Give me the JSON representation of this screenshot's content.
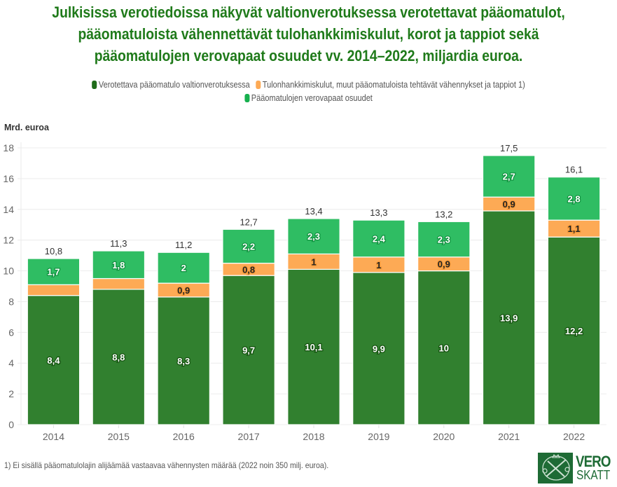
{
  "chart_data": {
    "type": "bar",
    "stacked": true,
    "title_lines": [
      "Julkisissa verotiedoissa näkyvät valtionverotuksessa verotettavat pääomatulot,",
      "pääomatuloista vähennettävät tulohankkimiskulut, korot ja tappiot sekä",
      "pääomatulojen verovapaat osuudet vv. 2014–2022, miljardia euroa."
    ],
    "ylabel": "Mrd. euroa",
    "xlabel": "",
    "ylim": [
      0,
      18
    ],
    "yticks": [
      "0",
      "2",
      "4",
      "6",
      "8",
      "10",
      "12",
      "14",
      "16",
      "18"
    ],
    "grid": true,
    "legend_position": "top",
    "categories": [
      "2014",
      "2015",
      "2016",
      "2017",
      "2018",
      "2019",
      "2020",
      "2021",
      "2022"
    ],
    "series": [
      {
        "name": "Verotettava pääomatulo valtionverotuksessa",
        "color": "#31802f",
        "values": [
          8.4,
          8.8,
          8.3,
          9.7,
          10.1,
          9.9,
          10,
          13.9,
          12.2
        ],
        "labels": [
          "8,4",
          "8,8",
          "8,3",
          "9,7",
          "10,1",
          "9,9",
          "10",
          "13,9",
          "12,2"
        ]
      },
      {
        "name": "Tulonhankkimiskulut, muut pääomatuloista tehtävät vähennykset ja tappiot 1)",
        "color": "#fdaa55",
        "values": [
          0.7,
          0.7,
          0.9,
          0.8,
          1,
          1,
          0.9,
          0.9,
          1.1
        ],
        "labels": [
          "",
          "",
          "0,9",
          "0,8",
          "1",
          "1",
          "0,9",
          "0,9",
          "1,1"
        ]
      },
      {
        "name": "Pääomatulojen verovapaat osuudet",
        "color": "#2fbd63",
        "values": [
          1.7,
          1.8,
          2,
          2.2,
          2.3,
          2.4,
          2.3,
          2.7,
          2.8
        ],
        "labels": [
          "1,7",
          "1,8",
          "2",
          "2,2",
          "2,3",
          "2,4",
          "2,3",
          "2,7",
          "2,8"
        ]
      }
    ],
    "totals": [
      10.8,
      11.3,
      11.2,
      12.7,
      13.4,
      13.3,
      13.2,
      17.5,
      16.1
    ],
    "total_labels": [
      "10,8",
      "11,3",
      "11,2",
      "12,7",
      "13,4",
      "13,3",
      "13,2",
      "17,5",
      "16,1"
    ]
  },
  "legend": {
    "items": [
      {
        "label": "Verotettava pääomatulo valtionverotuksessa",
        "color": "#1f6b1a"
      },
      {
        "label": "Tulonhankkimiskulut, muut pääomatuloista tehtävät vähennykset ja tappiot 1)",
        "color": "#fdaa55"
      },
      {
        "label": "Pääomatulojen verovapaat osuudet",
        "color": "#17b04e"
      }
    ]
  },
  "footnote": "1) Ei sisällä pääomatulolajin alijäämää vastaavaa vähennysten määrää (2022 noin 350 milj. euroa).",
  "logo": {
    "line1": "VERO",
    "line2": "SKATT",
    "icon": "tax-administration-crest-icon"
  },
  "colors": {
    "title": "#1f7a1a",
    "brand": "#1e6b35"
  }
}
